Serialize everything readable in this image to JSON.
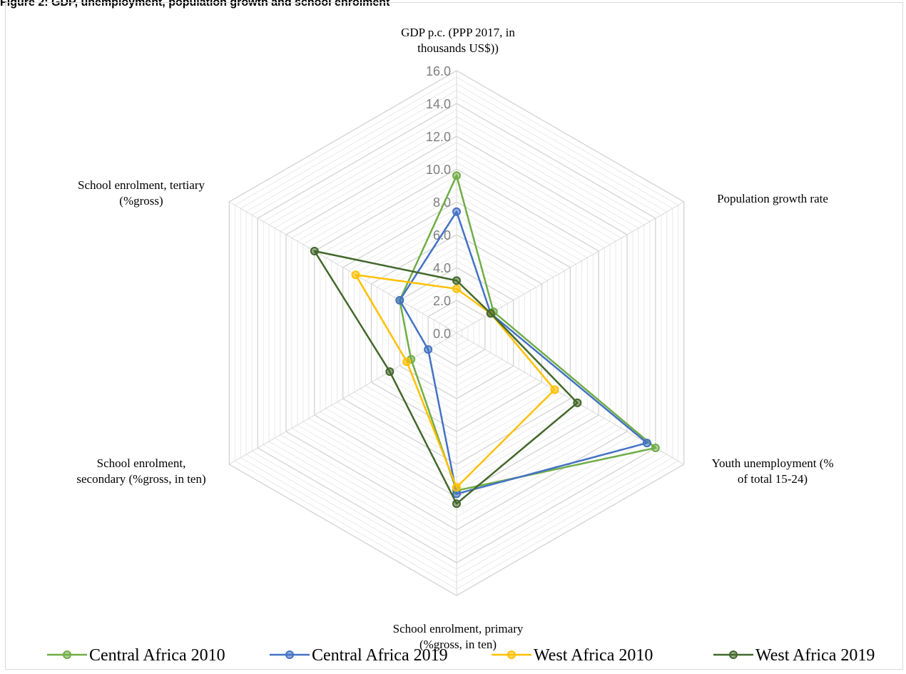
{
  "caption": "Figure 2: GDP, unemployment, population growth and school enrolment",
  "chart_data": {
    "type": "radar",
    "title": "",
    "rmin": 0,
    "rmax": 16,
    "tick_step": 2,
    "tick_labels": [
      "0.0",
      "2.0",
      "4.0",
      "6.0",
      "8.0",
      "10.0",
      "12.0",
      "14.0",
      "16.0"
    ],
    "grid": true,
    "legend_position": "bottom",
    "axes": [
      {
        "lines": [
          "GDP p.c. (PPP 2017, in",
          "thousands US$))"
        ]
      },
      {
        "lines": [
          "Population growth rate"
        ]
      },
      {
        "lines": [
          "Youth unemployment (%",
          "of total 15-24)"
        ]
      },
      {
        "lines": [
          "School enrolment, primary",
          "(%gross, in ten)"
        ]
      },
      {
        "lines": [
          "School enrolment,",
          "secondary (%gross, in ten)"
        ]
      },
      {
        "lines": [
          "School enrolment, tertiary",
          "(%gross)"
        ]
      }
    ],
    "series": [
      {
        "name": "Central Africa 2010",
        "color": "#70ad47",
        "values": [
          9.6,
          2.6,
          14.0,
          9.6,
          3.2,
          4.0
        ]
      },
      {
        "name": "Central Africa 2019",
        "color": "#4472c4",
        "values": [
          7.4,
          2.4,
          13.4,
          9.8,
          2.0,
          4.0
        ]
      },
      {
        "name": "West Africa 2010",
        "color": "#ffc000",
        "values": [
          2.7,
          2.4,
          6.9,
          9.4,
          3.5,
          7.1
        ]
      },
      {
        "name": "West Africa 2019",
        "color": "#43682b",
        "values": [
          3.2,
          2.4,
          8.5,
          10.4,
          4.7,
          10.0
        ]
      }
    ]
  }
}
